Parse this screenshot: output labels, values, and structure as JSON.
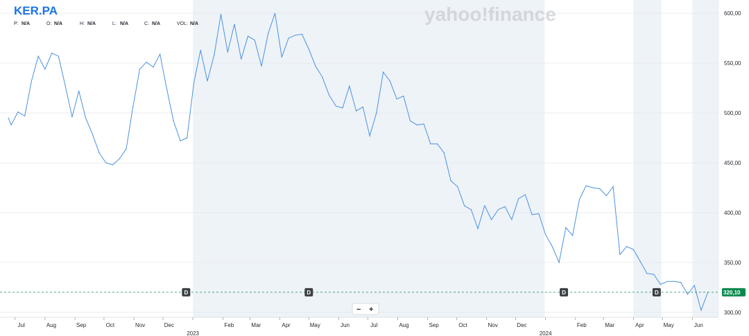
{
  "header": {
    "ticker": "KER.PA",
    "stats": [
      {
        "label": "P:",
        "value": "N/A"
      },
      {
        "label": "O:",
        "value": "N/A"
      },
      {
        "label": "H:",
        "value": "N/A"
      },
      {
        "label": "L:",
        "value": "N/A"
      },
      {
        "label": "C:",
        "value": "N/A"
      },
      {
        "label": "VOL:",
        "value": "N/A"
      }
    ]
  },
  "watermark": "yahoo!finance",
  "zoom": {
    "minus": "−",
    "plus": "+"
  },
  "colors": {
    "line": "#4a90e2",
    "shade": "#eef3f8",
    "price_tag": "#0b8a4f",
    "reference_line": "#0b8a4f",
    "dividend_marker": "#3c3f44",
    "ticker": "#1a73e8"
  },
  "chart_data": {
    "type": "line",
    "title": "KER.PA",
    "ylim": [
      295,
      605
    ],
    "yticks": [
      300,
      350,
      400,
      450,
      500,
      550,
      600
    ],
    "ytick_labels": [
      "300,00",
      "350,00",
      "400,00",
      "450,00",
      "500,00",
      "550,00",
      "600,00"
    ],
    "xlim": [
      "2022-06-24",
      "2024-06-28"
    ],
    "month_ticks": [
      {
        "date": "2022-07-01",
        "label": "Jul"
      },
      {
        "date": "2022-08-01",
        "label": "Aug"
      },
      {
        "date": "2022-09-01",
        "label": "Sep"
      },
      {
        "date": "2022-10-01",
        "label": "Oct"
      },
      {
        "date": "2022-11-01",
        "label": "Nov"
      },
      {
        "date": "2022-12-01",
        "label": "Dec"
      },
      {
        "date": "2023-01-01",
        "label": "2023",
        "year": true
      },
      {
        "date": "2023-02-01",
        "label": "Feb"
      },
      {
        "date": "2023-03-01",
        "label": "Mar"
      },
      {
        "date": "2023-04-01",
        "label": "Apr"
      },
      {
        "date": "2023-05-01",
        "label": "May"
      },
      {
        "date": "2023-06-01",
        "label": "Jun"
      },
      {
        "date": "2023-07-01",
        "label": "Jul"
      },
      {
        "date": "2023-08-01",
        "label": "Aug"
      },
      {
        "date": "2023-09-01",
        "label": "Sep"
      },
      {
        "date": "2023-10-01",
        "label": "Oct"
      },
      {
        "date": "2023-11-01",
        "label": "Nov"
      },
      {
        "date": "2023-12-01",
        "label": "Dec"
      },
      {
        "date": "2024-01-01",
        "label": "2024",
        "year": true
      },
      {
        "date": "2024-02-01",
        "label": "Feb"
      },
      {
        "date": "2024-03-01",
        "label": "Mar"
      },
      {
        "date": "2024-04-01",
        "label": "Apr"
      },
      {
        "date": "2024-05-01",
        "label": "May"
      },
      {
        "date": "2024-06-01",
        "label": "Jun"
      }
    ],
    "shaded_ranges": [
      [
        "2023-01-01",
        "2023-12-31"
      ],
      [
        "2024-04-01",
        "2024-04-30"
      ],
      [
        "2024-06-01",
        "2024-06-28"
      ]
    ],
    "series": [
      {
        "points": [
          [
            "2022-06-24",
            495
          ],
          [
            "2022-06-27",
            488
          ],
          [
            "2022-07-04",
            501
          ],
          [
            "2022-07-11",
            497
          ],
          [
            "2022-07-18",
            532
          ],
          [
            "2022-07-25",
            557
          ],
          [
            "2022-08-01",
            544
          ],
          [
            "2022-08-08",
            560
          ],
          [
            "2022-08-15",
            557
          ],
          [
            "2022-08-22",
            527
          ],
          [
            "2022-08-29",
            496
          ],
          [
            "2022-09-05",
            522
          ],
          [
            "2022-09-12",
            495
          ],
          [
            "2022-09-19",
            479
          ],
          [
            "2022-09-26",
            460
          ],
          [
            "2022-10-03",
            450
          ],
          [
            "2022-10-10",
            448
          ],
          [
            "2022-10-17",
            454
          ],
          [
            "2022-10-24",
            464
          ],
          [
            "2022-10-31",
            506
          ],
          [
            "2022-11-07",
            544
          ],
          [
            "2022-11-14",
            551
          ],
          [
            "2022-11-21",
            546
          ],
          [
            "2022-11-28",
            559
          ],
          [
            "2022-12-05",
            524
          ],
          [
            "2022-12-12",
            492
          ],
          [
            "2022-12-19",
            472
          ],
          [
            "2022-12-26",
            475
          ],
          [
            "2023-01-02",
            530
          ],
          [
            "2023-01-09",
            563
          ],
          [
            "2023-01-16",
            532
          ],
          [
            "2023-01-23",
            558
          ],
          [
            "2023-01-30",
            599
          ],
          [
            "2023-02-06",
            561
          ],
          [
            "2023-02-13",
            589
          ],
          [
            "2023-02-20",
            554
          ],
          [
            "2023-02-27",
            577
          ],
          [
            "2023-03-06",
            573
          ],
          [
            "2023-03-13",
            547
          ],
          [
            "2023-03-20",
            580
          ],
          [
            "2023-03-27",
            600
          ],
          [
            "2023-04-03",
            556
          ],
          [
            "2023-04-10",
            575
          ],
          [
            "2023-04-17",
            578
          ],
          [
            "2023-04-24",
            579
          ],
          [
            "2023-05-01",
            564
          ],
          [
            "2023-05-08",
            547
          ],
          [
            "2023-05-15",
            536
          ],
          [
            "2023-05-22",
            518
          ],
          [
            "2023-05-29",
            507
          ],
          [
            "2023-06-05",
            505
          ],
          [
            "2023-06-12",
            527
          ],
          [
            "2023-06-19",
            502
          ],
          [
            "2023-06-26",
            506
          ],
          [
            "2023-07-03",
            477
          ],
          [
            "2023-07-10",
            500
          ],
          [
            "2023-07-17",
            541
          ],
          [
            "2023-07-24",
            532
          ],
          [
            "2023-07-31",
            514
          ],
          [
            "2023-08-07",
            517
          ],
          [
            "2023-08-14",
            492
          ],
          [
            "2023-08-21",
            488
          ],
          [
            "2023-08-28",
            489
          ],
          [
            "2023-09-04",
            469
          ],
          [
            "2023-09-11",
            469
          ],
          [
            "2023-09-18",
            460
          ],
          [
            "2023-09-25",
            432
          ],
          [
            "2023-10-02",
            426
          ],
          [
            "2023-10-09",
            407
          ],
          [
            "2023-10-16",
            403
          ],
          [
            "2023-10-23",
            384
          ],
          [
            "2023-10-30",
            407
          ],
          [
            "2023-11-06",
            393
          ],
          [
            "2023-11-13",
            403
          ],
          [
            "2023-11-20",
            406
          ],
          [
            "2023-11-27",
            393
          ],
          [
            "2023-12-04",
            414
          ],
          [
            "2023-12-11",
            418
          ],
          [
            "2023-12-18",
            398
          ],
          [
            "2023-12-25",
            399
          ],
          [
            "2024-01-01",
            378
          ],
          [
            "2024-01-08",
            366
          ],
          [
            "2024-01-15",
            350
          ],
          [
            "2024-01-22",
            385
          ],
          [
            "2024-01-29",
            377
          ],
          [
            "2024-02-05",
            413
          ],
          [
            "2024-02-12",
            427
          ],
          [
            "2024-02-19",
            425
          ],
          [
            "2024-02-26",
            424
          ],
          [
            "2024-03-04",
            417
          ],
          [
            "2024-03-11",
            426
          ],
          [
            "2024-03-18",
            358
          ],
          [
            "2024-03-25",
            366
          ],
          [
            "2024-04-01",
            363
          ],
          [
            "2024-04-08",
            351
          ],
          [
            "2024-04-15",
            339
          ],
          [
            "2024-04-22",
            338
          ],
          [
            "2024-04-29",
            328
          ],
          [
            "2024-05-06",
            331
          ],
          [
            "2024-05-13",
            331
          ],
          [
            "2024-05-20",
            330
          ],
          [
            "2024-05-27",
            318
          ],
          [
            "2024-06-03",
            327
          ],
          [
            "2024-06-10",
            302
          ],
          [
            "2024-06-17",
            320.1
          ]
        ]
      }
    ],
    "last_price": 320.1,
    "last_price_label": "320,10",
    "dividends": [
      {
        "date": "2022-12-25",
        "label": "D"
      },
      {
        "date": "2023-05-01",
        "label": "D"
      },
      {
        "date": "2024-01-20",
        "label": "D"
      },
      {
        "date": "2024-04-25",
        "label": "D"
      }
    ]
  }
}
